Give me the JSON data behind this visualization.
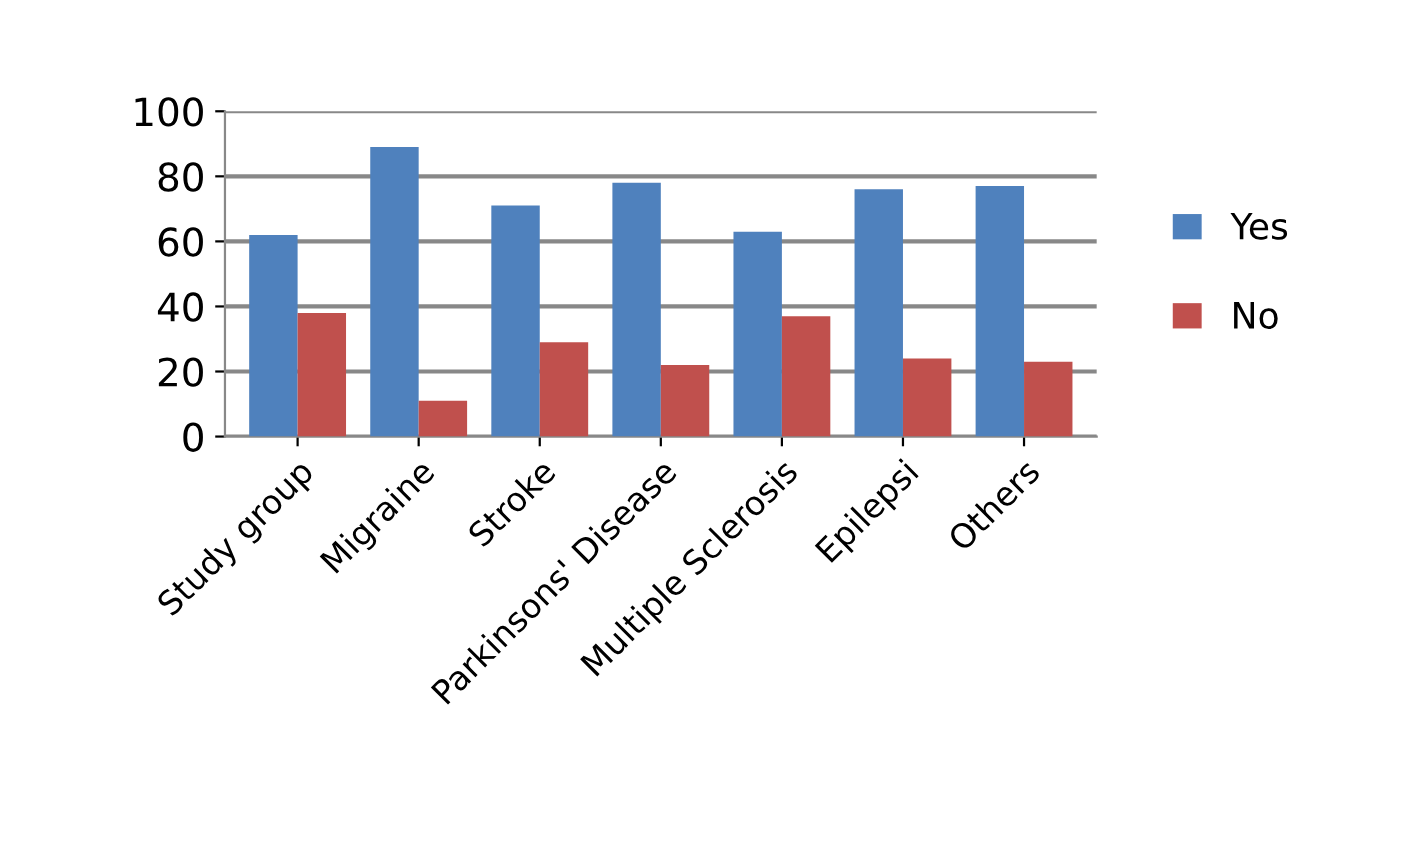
{
  "chart_data": {
    "type": "bar",
    "categories": [
      "Study group",
      "Migraine",
      "Stroke",
      "Parkinsons' Disease",
      "Multiple Sclerosis",
      "Epilepsi",
      "Others"
    ],
    "series": [
      {
        "name": "Yes",
        "color": "#4f81bd",
        "values": [
          62,
          89,
          71,
          78,
          63,
          76,
          77
        ]
      },
      {
        "name": "No",
        "color": "#c0504d",
        "values": [
          38,
          11,
          29,
          22,
          37,
          24,
          23
        ]
      }
    ],
    "ylim": [
      0,
      100
    ],
    "yticks": [
      0,
      20,
      40,
      60,
      80,
      100
    ],
    "grid": "y",
    "legend": "right"
  }
}
